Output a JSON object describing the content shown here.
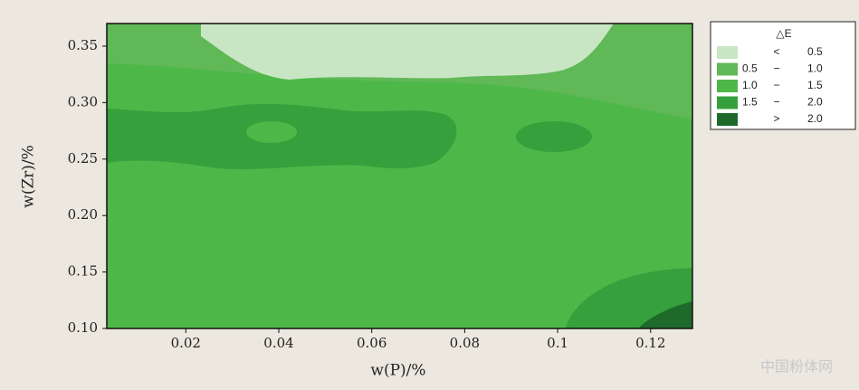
{
  "chart_data": {
    "type": "contour",
    "x_label": "w(P)/%",
    "y_label": "w(Zr)/%",
    "xlim": [
      0.003,
      0.129
    ],
    "xticks": [
      0.02,
      0.04,
      0.06,
      0.08,
      0.1,
      0.12
    ],
    "ylim": [
      0.1,
      0.37
    ],
    "yticks": [
      {
        "value": 0.1,
        "label": "0.10"
      },
      0.15,
      {
        "value": 0.2,
        "label": "0.20"
      },
      0.25,
      {
        "value": 0.3,
        "label": "0.30"
      },
      0.35
    ],
    "legend": {
      "title": "△E",
      "items": [
        {
          "color": "#c8e6c4",
          "op": "<",
          "high": 0.5
        },
        {
          "color": "#60b857",
          "low": 0.5,
          "op": "−",
          "high": {
            "value": 1,
            "label": "1.0"
          }
        },
        {
          "color": "#4db848",
          "low": {
            "value": 1,
            "label": "1.0"
          },
          "op": "−",
          "high": 1.5
        },
        {
          "color": "#35a03c",
          "low": 1.5,
          "op": "−",
          "high": {
            "value": 2,
            "label": "2.0"
          }
        },
        {
          "color": "#1e6a2a",
          "op": ">",
          "high": {
            "value": 2,
            "label": "2.0"
          }
        }
      ]
    }
  },
  "watermark": "中国粉体网"
}
